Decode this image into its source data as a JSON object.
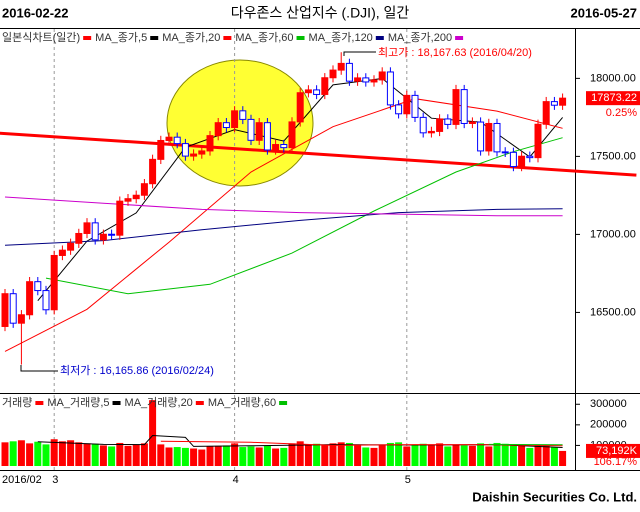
{
  "header": {
    "start_date": "2016-02-22",
    "title": "다우존스 산업지수 (.DJI), 일간",
    "end_date": "2016-05-27"
  },
  "footer": "Daishin Securities Co. Ltd.",
  "chart_data": [
    {
      "type": "candlestick",
      "legend_title": "일본식차트(일간)",
      "legend_color": "#ff0000",
      "up_color": "#ff0000",
      "down_color": "#0000ff",
      "open": [
        16410,
        16620,
        16431,
        16485,
        16697,
        16640,
        16517,
        16865,
        16899,
        16943,
        17006,
        17074,
        16965,
        17001,
        16995,
        17213,
        17229,
        17251,
        17325,
        17481,
        17602,
        17623,
        17582,
        17502,
        17515,
        17535,
        17633,
        17716,
        17685,
        17792,
        17737,
        17603,
        17716,
        17541,
        17576,
        17556,
        17721,
        17908,
        17926,
        17897,
        18004,
        18053,
        18096,
        17982,
        18003,
        17977,
        17990,
        18041,
        17830,
        17773,
        17891,
        17750,
        17651,
        17660,
        17740,
        17705,
        17928,
        17711,
        17720,
        17535,
        17711,
        17529,
        17526,
        17435,
        17501,
        17492,
        17706,
        17851,
        17828
      ],
      "high": [
        16650,
        16650,
        16515,
        16727,
        16727,
        16670,
        16895,
        16929,
        16973,
        17036,
        17104,
        17104,
        17031,
        17031,
        17243,
        17259,
        17281,
        17355,
        17511,
        17632,
        17653,
        17653,
        17612,
        17545,
        17565,
        17663,
        17746,
        17746,
        17822,
        17822,
        17767,
        17746,
        17746,
        17606,
        17606,
        17751,
        17938,
        17956,
        17956,
        18034,
        18083,
        18167.63,
        18126,
        18033,
        18033,
        18020,
        18071,
        18071,
        17860,
        17921,
        17921,
        17780,
        17690,
        17770,
        17770,
        17958,
        17958,
        17750,
        17750,
        17741,
        17741,
        17559,
        17556,
        17531,
        17531,
        17736,
        17881,
        17881,
        17903
      ],
      "low": [
        16380,
        16401,
        16165.86,
        16455,
        16610,
        16487,
        16487,
        16835,
        16869,
        16913,
        16976,
        16935,
        16935,
        16965,
        16965,
        17183,
        17199,
        17221,
        17295,
        17451,
        17572,
        17552,
        17472,
        17472,
        17485,
        17505,
        17603,
        17655,
        17655,
        17707,
        17573,
        17573,
        17511,
        17511,
        17526,
        17526,
        17691,
        17878,
        17867,
        17867,
        17974,
        18023,
        17952,
        17952,
        17947,
        17947,
        17960,
        17800,
        17743,
        17743,
        17720,
        17621,
        17621,
        17630,
        17675,
        17675,
        17681,
        17681,
        17505,
        17505,
        17499,
        17496,
        17405,
        17405,
        17462,
        17462,
        17676,
        17798,
        17798
      ],
      "close": [
        16620,
        16431,
        16485,
        16697,
        16640,
        16517,
        16865,
        16899,
        16943,
        17006,
        17074,
        16965,
        17001,
        16995,
        17213,
        17229,
        17251,
        17325,
        17481,
        17602,
        17623,
        17582,
        17502,
        17515,
        17535,
        17633,
        17716,
        17685,
        17792,
        17737,
        17603,
        17716,
        17541,
        17576,
        17556,
        17721,
        17908,
        17926,
        17897,
        18004,
        18053,
        18096,
        17982,
        18003,
        17977,
        17990,
        18041,
        17830,
        17773,
        17891,
        17750,
        17651,
        17660,
        17740,
        17705,
        17928,
        17711,
        17720,
        17535,
        17711,
        17529,
        17526,
        17435,
        17501,
        17492,
        17706,
        17851,
        17828,
        17873.22
      ],
      "series": [
        {
          "name": "MA_종가,5",
          "color": "#000000",
          "x": [
            4,
            10,
            16,
            22,
            28,
            34,
            40,
            46,
            52,
            58,
            64,
            68
          ],
          "values": [
            16575,
            16957,
            17138,
            17558,
            17672,
            17598,
            17958,
            17999,
            17745,
            17720,
            17497,
            17750
          ]
        },
        {
          "name": "MA_종가,20",
          "color": "#ff0000",
          "x": [
            0,
            10,
            20,
            30,
            40,
            50,
            60,
            68
          ],
          "values": [
            16250,
            16520,
            16950,
            17400,
            17690,
            17870,
            17790,
            17680
          ]
        },
        {
          "name": "MA_종가,60",
          "color": "#00c000",
          "x": [
            5,
            15,
            25,
            35,
            45,
            55,
            62,
            68
          ],
          "values": [
            16720,
            16620,
            16680,
            16880,
            17150,
            17400,
            17530,
            17620
          ]
        },
        {
          "name": "MA_종가,120",
          "color": "#000080",
          "x": [
            0,
            12,
            24,
            36,
            48,
            60,
            68
          ],
          "values": [
            16930,
            16960,
            17030,
            17090,
            17140,
            17160,
            17165
          ]
        },
        {
          "name": "MA_종가,200",
          "color": "#cc00cc",
          "x": [
            0,
            12,
            24,
            36,
            48,
            60,
            68
          ],
          "values": [
            17240,
            17200,
            17160,
            17140,
            17130,
            17120,
            17120
          ]
        }
      ],
      "trendline": {
        "color": "#ff0000",
        "x": [
          -1,
          77
        ],
        "values": [
          17650,
          17380
        ]
      },
      "change": "0.25%",
      "high_note": "최고가 : 18,167.63 (2016/04/20)",
      "low_note": "최저가 : 16,165.86 (2016/02/24)",
      "ylim": [
        15990,
        18310
      ],
      "yticks": [
        {
          "value": 16500,
          "label": "16500.00"
        },
        {
          "value": 17000,
          "label": "17000.00"
        },
        {
          "value": 17500,
          "label": "17500.00"
        },
        {
          "value": 18000,
          "label": "18000.00"
        }
      ],
      "xticks": [
        {
          "value": 0,
          "label": "2016/02"
        },
        {
          "value": 6,
          "label": "3"
        },
        {
          "value": 28,
          "label": "4"
        },
        {
          "value": 49,
          "label": "5"
        }
      ],
      "xgrid": true
    },
    {
      "type": "bar",
      "legend_title": "거래량",
      "legend_color": "#ff0000",
      "up_color": "#ff0000",
      "down_color": "#00ff00",
      "values": [
        115000,
        120000,
        125000,
        110000,
        118000,
        105000,
        130000,
        120000,
        125000,
        115000,
        110000,
        108000,
        100000,
        95000,
        112000,
        98000,
        102000,
        110000,
        320000,
        105000,
        90000,
        92000,
        88000,
        85000,
        80000,
        95000,
        98000,
        100000,
        110000,
        92000,
        95000,
        90000,
        100000,
        85000,
        88000,
        110000,
        120000,
        105000,
        108000,
        102000,
        110000,
        115000,
        112000,
        100000,
        90000,
        88000,
        100000,
        112000,
        115000,
        95000,
        105000,
        108000,
        100000,
        110000,
        95000,
        102000,
        100000,
        98000,
        110000,
        95000,
        112000,
        108000,
        105000,
        100000,
        88000,
        100000,
        98000,
        92000,
        73192
      ],
      "series": [
        {
          "name": "MA_거래량,5",
          "color": "#000000",
          "x": [
            4,
            12,
            17,
            18,
            22,
            23,
            30,
            40,
            50,
            60,
            68
          ],
          "values": [
            118000,
            105000,
            104000,
            148000,
            139000,
            95000,
            98000,
            104000,
            102000,
            104000,
            90000
          ]
        },
        {
          "name": "MA_거래량,20",
          "color": "#ff0000",
          "x": [
            19,
            30,
            40,
            50,
            60,
            68
          ],
          "values": [
            120000,
            115000,
            100000,
            104000,
            103000,
            98000
          ]
        },
        {
          "name": "MA_거래량,60",
          "color": "#00c000",
          "x": [
            59,
            68
          ],
          "values": [
            105000,
            103000
          ]
        }
      ],
      "last_label": "73,192K",
      "ratio_label": "106.17%",
      "ylim": [
        0,
        345000
      ],
      "yticks": [
        100000,
        200000,
        300000
      ]
    }
  ]
}
